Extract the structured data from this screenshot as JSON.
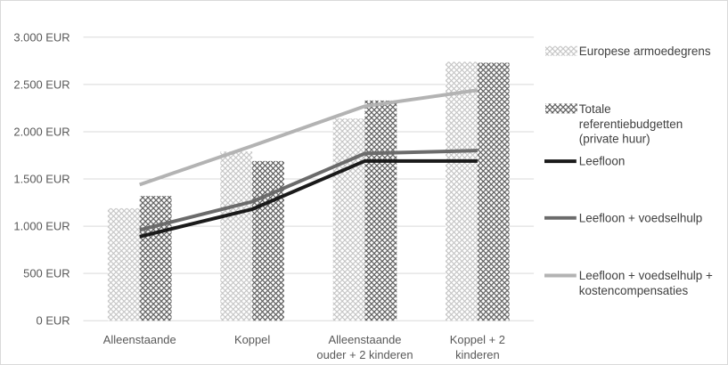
{
  "colors": {
    "grid": "#d9d9d9",
    "pattern_light": "#bfbfbf",
    "pattern_dark": "#595959",
    "leefloon": "#1a1a1a",
    "voedselhulp": "#6b6b6b",
    "kostencompensaties": "#b3b3b3"
  },
  "chart_data": {
    "type": "bar",
    "ylim": [
      0,
      3000
    ],
    "yticks": [
      0,
      500,
      1000,
      1500,
      2000,
      2500,
      3000
    ],
    "ytick_labels": [
      "0 EUR",
      "500 EUR",
      "1.000 EUR",
      "1.500 EUR",
      "2.000 EUR",
      "2.500 EUR",
      "3.000 EUR"
    ],
    "grid": true,
    "legend_position": "right",
    "categories": [
      [
        "Alleenstaande"
      ],
      [
        "Koppel"
      ],
      [
        "Alleenstaande",
        "ouder + 2 kinderen"
      ],
      [
        "Koppel + 2",
        "kinderen"
      ]
    ],
    "bar_series": [
      {
        "name": "Europese armoedegrens",
        "legend_lines": [
          "Europese armoedegrens"
        ],
        "pattern": "light",
        "values": [
          1190,
          1790,
          2140,
          2740
        ]
      },
      {
        "name": "Totale referentiebudgetten (private huur)",
        "legend_lines": [
          "Totale",
          "referentiebudgetten",
          "(private huur)"
        ],
        "pattern": "dark",
        "values": [
          1320,
          1690,
          2330,
          2730
        ]
      }
    ],
    "line_series": [
      {
        "name": "Leefloon",
        "legend_lines": [
          "Leefloon"
        ],
        "color_key": "leefloon",
        "values": [
          890,
          1180,
          1690,
          1690
        ]
      },
      {
        "name": "Leefloon + voedselhulp",
        "legend_lines": [
          "Leefloon + voedselhulp"
        ],
        "color_key": "voedselhulp",
        "values": [
          960,
          1260,
          1770,
          1800
        ]
      },
      {
        "name": "Leefloon + voedselhulp + kostencompensaties",
        "legend_lines": [
          "Leefloon + voedselhulp +",
          "kostencompensaties"
        ],
        "color_key": "kostencompensaties",
        "values": [
          1440,
          1850,
          2270,
          2440
        ]
      }
    ]
  }
}
